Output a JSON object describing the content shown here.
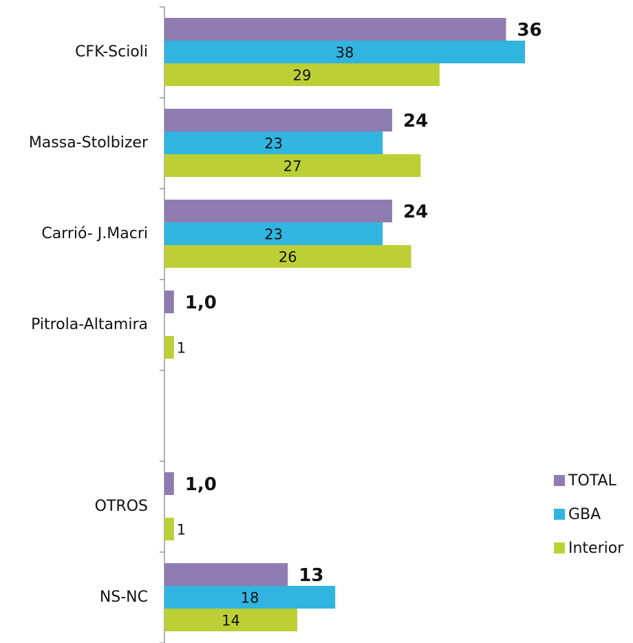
{
  "chart_data": {
    "type": "bar",
    "orientation": "horizontal",
    "categories": [
      "CFK-Scioli",
      "Massa-Stolbizer",
      "Carrió- J.Macri",
      "Pitrola-Altamira",
      null,
      "OTROS",
      "NS-NC"
    ],
    "series": [
      {
        "name": "TOTAL",
        "color": "#8e7cb0",
        "values": [
          36,
          24,
          24,
          1.0,
          null,
          1.0,
          13
        ],
        "value_labels": [
          "36",
          "24",
          "24",
          "1,0",
          null,
          "1,0",
          "13"
        ]
      },
      {
        "name": "GBA",
        "color": "#31b4e0",
        "values": [
          38,
          23,
          23,
          null,
          null,
          null,
          18
        ]
      },
      {
        "name": "Interior",
        "color": "#bccf35",
        "values": [
          29,
          27,
          26,
          1,
          null,
          1,
          14
        ]
      }
    ],
    "legend": "right"
  }
}
